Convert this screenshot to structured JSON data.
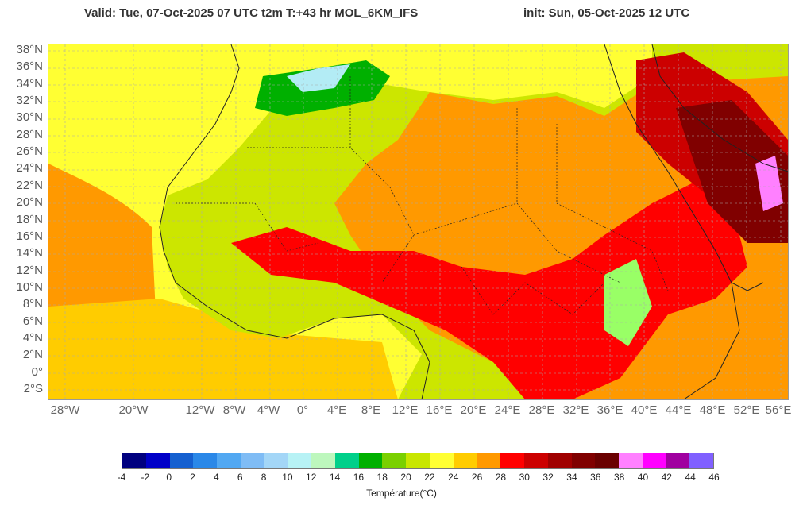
{
  "header": {
    "valid": "Valid: Tue, 07-Oct-2025   07 UTC   t2m   T:+43 hr   MOL_6KM_IFS",
    "init": "init: Sun, 05-Oct-2025   12 UTC"
  },
  "map": {
    "lat_labels": [
      "38°N",
      "36°N",
      "34°N",
      "32°N",
      "30°N",
      "28°N",
      "26°N",
      "24°N",
      "22°N",
      "20°N",
      "18°N",
      "16°N",
      "14°N",
      "12°N",
      "10°N",
      "8°N",
      "6°N",
      "4°N",
      "2°N",
      "0°",
      "2°S"
    ],
    "lon_labels": [
      "28°W",
      "20°W",
      "12°W",
      "8°W",
      "4°W",
      "0°",
      "4°E",
      "8°E",
      "12°E",
      "16°E",
      "20°E",
      "24°E",
      "28°E",
      "32°E",
      "36°E",
      "40°E",
      "44°E",
      "48°E",
      "52°E",
      "56°E"
    ],
    "palette": {
      "ocean_cool": "#ffff33",
      "ocean_warm": "#ffcc00",
      "ocean_hot": "#ff9900",
      "land_cool": "#99ff66",
      "land_mild": "#cce600",
      "desert_hot": "#ff0000",
      "desert_very_hot": "#cc0000",
      "extreme": "#800000",
      "mountain": "#b3ecf5",
      "peak": "#ff80ff",
      "border": "#222222",
      "grid": "#aaaaaa"
    }
  },
  "legend": {
    "title": "Température(°C)",
    "ticks": [
      "-4",
      "-2",
      "0",
      "2",
      "4",
      "6",
      "8",
      "10",
      "12",
      "14",
      "16",
      "18",
      "20",
      "22",
      "24",
      "26",
      "28",
      "30",
      "32",
      "34",
      "36",
      "38",
      "40",
      "42",
      "44",
      "46"
    ],
    "colors": [
      "#00007f",
      "#0000c8",
      "#1560d0",
      "#2a88e8",
      "#52a8f2",
      "#7fbcf5",
      "#a3d6f7",
      "#b7f2f5",
      "#bdf7bd",
      "#00d08a",
      "#00b000",
      "#7ad000",
      "#c8e600",
      "#ffff33",
      "#ffcc00",
      "#ff9900",
      "#ff0000",
      "#cc0000",
      "#a00000",
      "#800000",
      "#6a0000",
      "#ff80ff",
      "#ff00ff",
      "#a000a0",
      "#8060ff"
    ]
  }
}
